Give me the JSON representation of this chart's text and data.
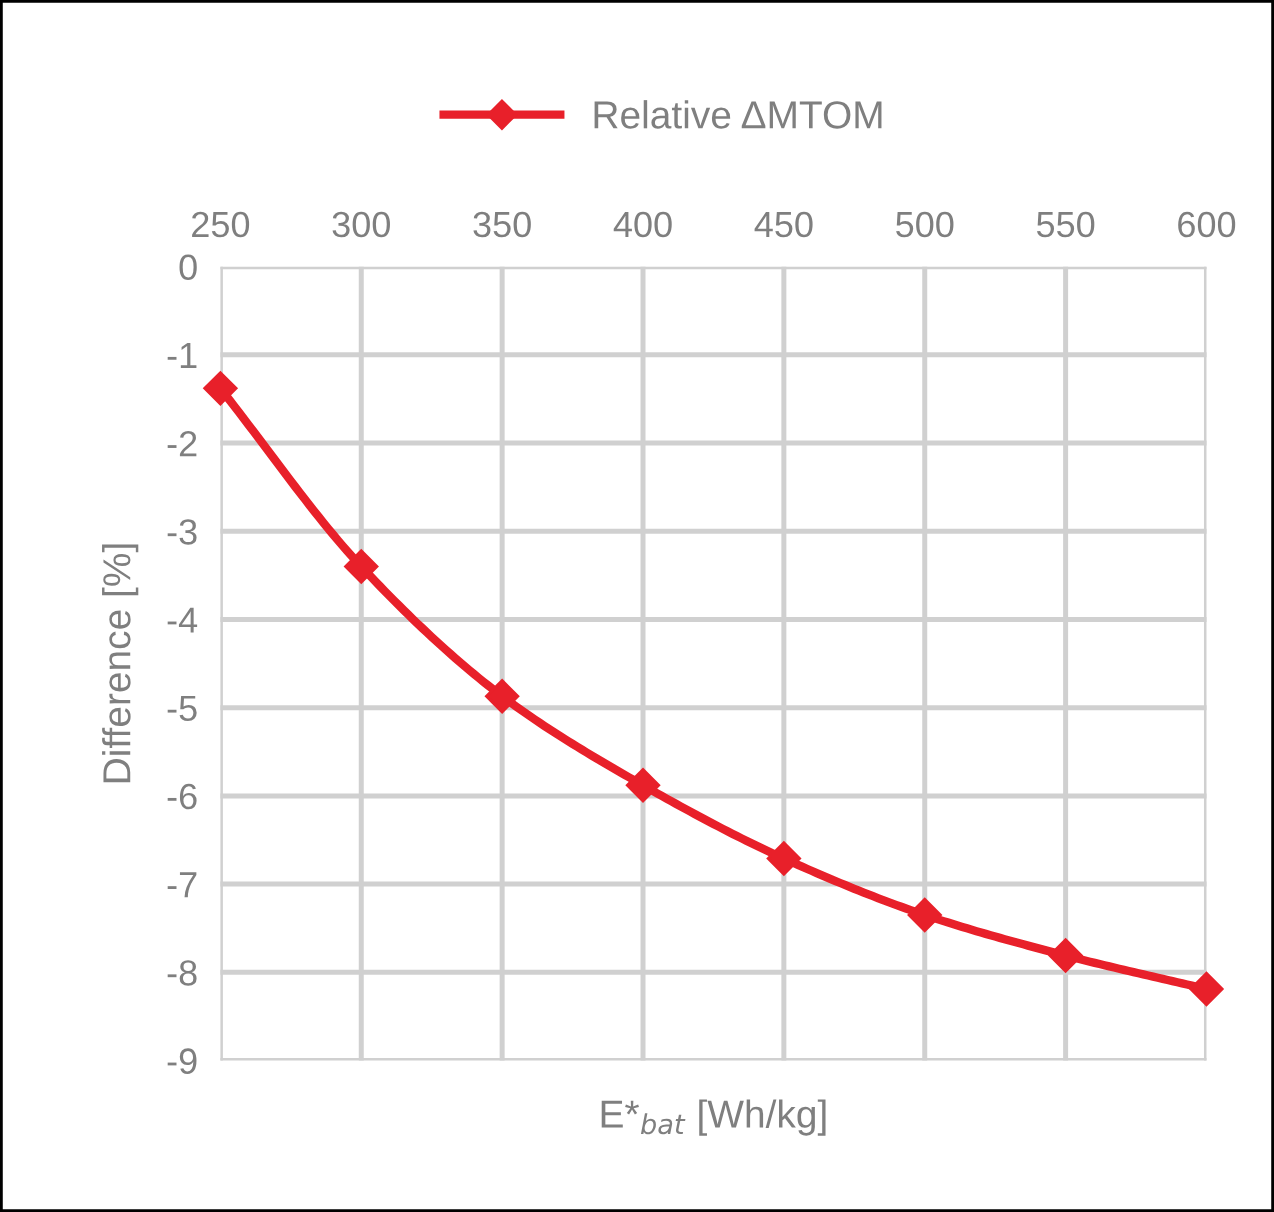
{
  "chart_data": {
    "type": "line",
    "xlabel": "E*$_{bat}$ [Wh/kg]",
    "ylabel": "Difference [%]",
    "x": [
      250,
      300,
      350,
      400,
      450,
      500,
      550,
      600
    ],
    "series": [
      {
        "name": "Relative ΔMTOM",
        "color": "#e8202a",
        "values": [
          -1.38,
          -3.4,
          -4.87,
          -5.88,
          -6.71,
          -7.35,
          -7.81,
          -8.19
        ]
      }
    ],
    "xlim": [
      250,
      600
    ],
    "xticks": [
      250,
      300,
      350,
      400,
      450,
      500,
      550,
      600
    ],
    "ylim": [
      -9,
      0
    ],
    "yticks": [
      -9,
      -8,
      -7,
      -6,
      -5,
      -4,
      -3,
      -2,
      -1,
      0
    ],
    "grid": true,
    "legend": "top",
    "marker": "diamond",
    "line_style": "solid"
  }
}
